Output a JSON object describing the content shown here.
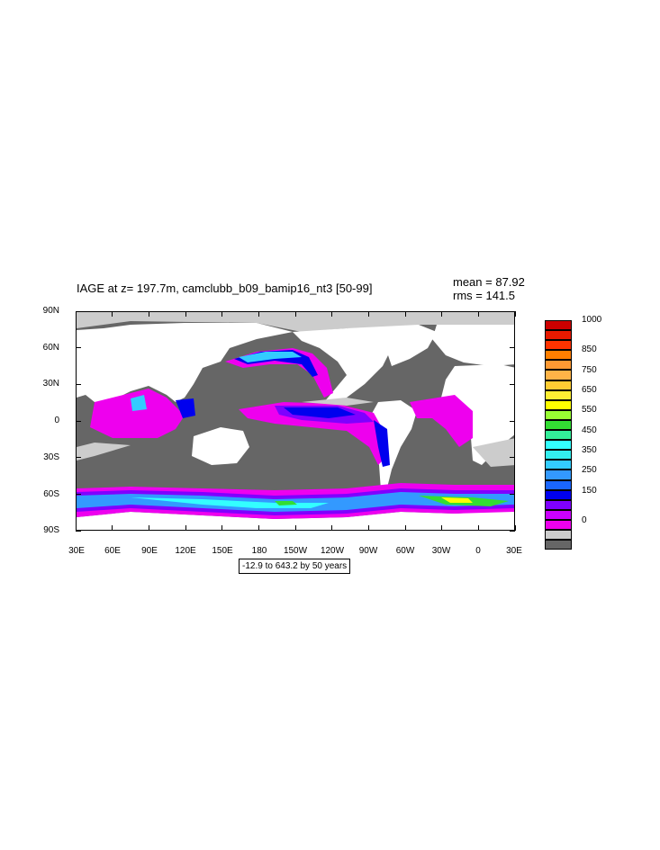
{
  "title": "IAGE at z= 197.7m, camclubb_b09_bamip16_nt3 [50-99]",
  "stats": {
    "mean": "mean = 87.92",
    "rms": "rms = 141.5"
  },
  "range_note": "-12.9 to 643.2 by 50 years",
  "lat_labels": [
    "90N",
    "60N",
    "30N",
    "0",
    "30S",
    "60S",
    "90S"
  ],
  "lon_labels": [
    "30E",
    "60E",
    "90E",
    "120E",
    "150E",
    "180",
    "150W",
    "120W",
    "90W",
    "60W",
    "30W",
    "0",
    "30E"
  ],
  "colorbar": {
    "labels": [
      "1000",
      "850",
      "750",
      "650",
      "550",
      "450",
      "350",
      "250",
      "150",
      "0"
    ],
    "colors": [
      "#cc0000",
      "#e61a00",
      "#ff3300",
      "#ff7f00",
      "#ff9933",
      "#ffb347",
      "#ffcc33",
      "#ffee33",
      "#ffff00",
      "#99ff33",
      "#33dd33",
      "#33ee99",
      "#33ffff",
      "#33eeee",
      "#33ccff",
      "#3399ff",
      "#1a66ff",
      "#0000ee",
      "#7f00ff",
      "#cc00ff",
      "#ee00ee",
      "#cccccc",
      "#666666"
    ]
  },
  "map_colors": {
    "land": "#ffffff",
    "ocean_low": "#666666",
    "ice_lowest": "#cccccc",
    "level_150": "#ee00ee",
    "level_200": "#7f00ff",
    "level_250": "#0000ee",
    "level_300": "#3399ff",
    "level_400": "#33ffff",
    "level_500": "#33dd33",
    "level_600": "#ffff00"
  }
}
